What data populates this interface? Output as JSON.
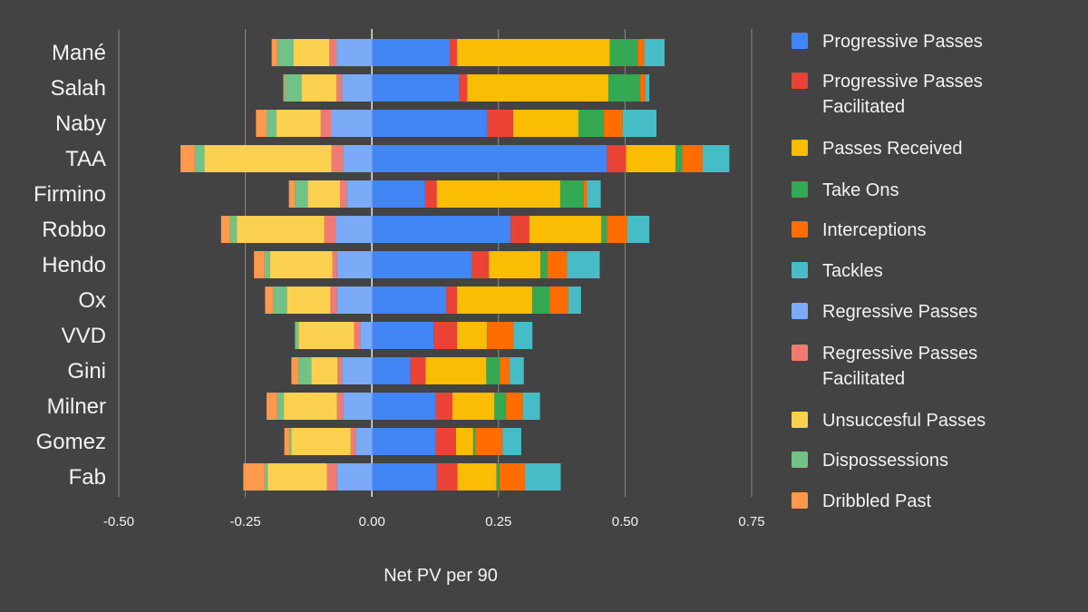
{
  "chart_data": {
    "type": "bar",
    "orientation": "horizontal",
    "stacked": true,
    "title": "",
    "xlabel": "Net PV per 90",
    "ylabel": "",
    "xlim": [
      -0.5,
      0.75
    ],
    "xticks": [
      -0.5,
      -0.25,
      0,
      0.25,
      0.5,
      0.75
    ],
    "xtick_labels": [
      "-0.50",
      "-0.25",
      "0.00",
      "0.25",
      "0.50",
      "0.75"
    ],
    "grid": "vertical",
    "legend_position": "right",
    "categories": [
      "Mané",
      "Salah",
      "Naby",
      "TAA",
      "Firmino",
      "Robbo",
      "Hendo",
      "Ox",
      "VVD",
      "Gini",
      "Milner",
      "Gomez",
      "Fab"
    ],
    "series": [
      {
        "name": "Progressive Passes",
        "color": "#4285f4",
        "values": [
          0.154,
          0.172,
          0.227,
          0.464,
          0.105,
          0.274,
          0.197,
          0.147,
          0.122,
          0.076,
          0.126,
          0.126,
          0.128
        ]
      },
      {
        "name": "Progressive Passes Facilitated",
        "color": "#ea4335",
        "values": [
          0.014,
          0.016,
          0.052,
          0.038,
          0.023,
          0.037,
          0.034,
          0.021,
          0.046,
          0.03,
          0.033,
          0.04,
          0.041
        ]
      },
      {
        "name": "Passes Received",
        "color": "#fbbc04",
        "values": [
          0.302,
          0.279,
          0.129,
          0.098,
          0.244,
          0.142,
          0.102,
          0.149,
          0.059,
          0.12,
          0.083,
          0.034,
          0.077
        ]
      },
      {
        "name": "Take Ons",
        "color": "#34a853",
        "values": [
          0.055,
          0.063,
          0.05,
          0.013,
          0.046,
          0.011,
          0.013,
          0.034,
          0.001,
          0.027,
          0.023,
          0.004,
          0.006
        ]
      },
      {
        "name": "Interceptions",
        "color": "#ff6d01",
        "values": [
          0.013,
          0.01,
          0.037,
          0.04,
          0.007,
          0.04,
          0.039,
          0.037,
          0.052,
          0.019,
          0.033,
          0.054,
          0.05
        ]
      },
      {
        "name": "Tackles",
        "color": "#46bdc6",
        "values": [
          0.04,
          0.008,
          0.067,
          0.053,
          0.027,
          0.044,
          0.065,
          0.025,
          0.037,
          0.028,
          0.034,
          0.037,
          0.071
        ]
      },
      {
        "name": "Regressive Passes",
        "color": "#7baaf7",
        "values": [
          -0.07,
          -0.059,
          -0.081,
          -0.057,
          -0.05,
          -0.071,
          -0.069,
          -0.069,
          -0.023,
          -0.059,
          -0.057,
          -0.032,
          -0.069
        ]
      },
      {
        "name": "Regressive Passes Facilitated",
        "color": "#f07b72",
        "values": [
          -0.014,
          -0.011,
          -0.02,
          -0.023,
          -0.013,
          -0.023,
          -0.009,
          -0.013,
          -0.012,
          -0.009,
          -0.012,
          -0.01,
          -0.02
        ]
      },
      {
        "name": "Unsuccesful Passes",
        "color": "#fcd04f",
        "values": [
          -0.071,
          -0.069,
          -0.088,
          -0.251,
          -0.064,
          -0.173,
          -0.123,
          -0.086,
          -0.11,
          -0.052,
          -0.105,
          -0.117,
          -0.117
        ]
      },
      {
        "name": "Dispossessions",
        "color": "#71c287",
        "values": [
          -0.032,
          -0.034,
          -0.019,
          -0.019,
          -0.025,
          -0.013,
          -0.011,
          -0.027,
          -0.007,
          -0.025,
          -0.013,
          -0.003,
          -0.006
        ]
      },
      {
        "name": "Dribbled Past",
        "color": "#ff994d",
        "values": [
          -0.011,
          -0.002,
          -0.021,
          -0.028,
          -0.012,
          -0.018,
          -0.021,
          -0.016,
          0.0,
          -0.014,
          -0.021,
          -0.011,
          -0.042
        ]
      }
    ]
  }
}
